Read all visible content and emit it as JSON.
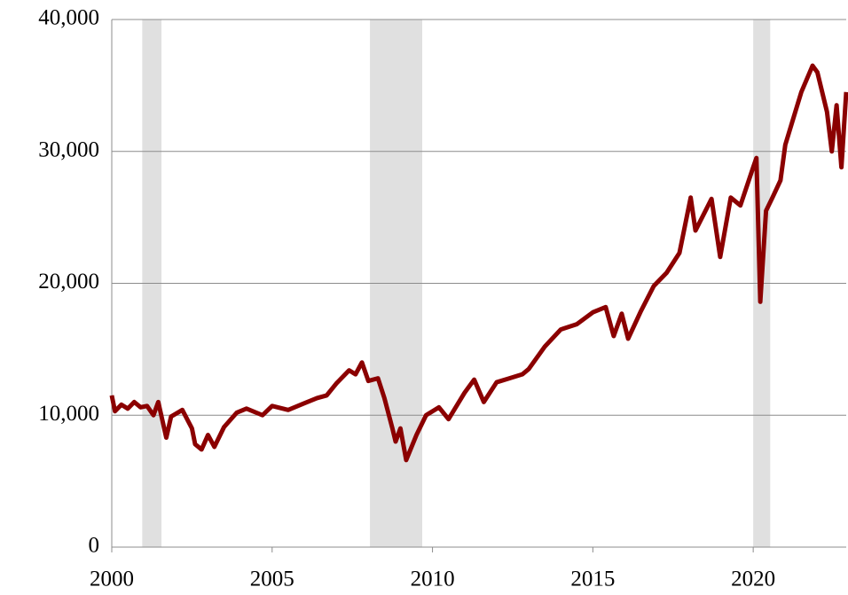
{
  "chart_data": {
    "type": "line",
    "x": [
      2000.0,
      2000.1,
      2000.3,
      2000.5,
      2000.7,
      2000.9,
      2001.1,
      2001.3,
      2001.45,
      2001.7,
      2001.85,
      2002.2,
      2002.5,
      2002.6,
      2002.8,
      2003.0,
      2003.2,
      2003.5,
      2003.9,
      2004.2,
      2004.7,
      2005.0,
      2005.5,
      2006.0,
      2006.4,
      2006.7,
      2007.0,
      2007.4,
      2007.6,
      2007.8,
      2008.0,
      2008.3,
      2008.5,
      2008.75,
      2008.85,
      2009.0,
      2009.18,
      2009.5,
      2009.8,
      2010.2,
      2010.5,
      2011.0,
      2011.3,
      2011.6,
      2012.0,
      2012.4,
      2012.8,
      2013.0,
      2013.5,
      2014.0,
      2014.5,
      2015.0,
      2015.4,
      2015.65,
      2015.9,
      2016.1,
      2016.5,
      2016.9,
      2017.3,
      2017.7,
      2018.05,
      2018.2,
      2018.7,
      2018.97,
      2019.3,
      2019.6,
      2020.0,
      2020.1,
      2020.22,
      2020.4,
      2020.6,
      2020.85,
      2021.0,
      2021.5,
      2021.85,
      2022.0,
      2022.3,
      2022.45,
      2022.6,
      2022.75,
      2022.9
    ],
    "series": [
      {
        "color": "#8b0000",
        "values": [
          11500,
          10300,
          10800,
          10500,
          11000,
          10600,
          10700,
          10000,
          11000,
          8300,
          9900,
          10400,
          9000,
          7800,
          7400,
          8500,
          7600,
          9100,
          10200,
          10500,
          10000,
          10700,
          10400,
          10900,
          11300,
          11500,
          12400,
          13400,
          13100,
          14000,
          12600,
          12800,
          11300,
          9000,
          8000,
          9000,
          6600,
          8500,
          10000,
          10600,
          9700,
          11700,
          12700,
          11000,
          12500,
          12800,
          13100,
          13500,
          15200,
          16500,
          16900,
          17800,
          18200,
          16000,
          17700,
          15800,
          17900,
          19800,
          20800,
          22300,
          26500,
          24000,
          26400,
          22000,
          26500,
          25900,
          28800,
          29500,
          18600,
          25500,
          26500,
          27800,
          30500,
          34500,
          36500,
          36000,
          33000,
          30000,
          33500,
          28800,
          34500
        ]
      }
    ],
    "shaded_periods": [
      {
        "start": 2000.95,
        "end": 2001.55
      },
      {
        "start": 2008.05,
        "end": 2009.68
      },
      {
        "start": 2020.0,
        "end": 2020.53
      }
    ],
    "shade_color": "#e0e0e0",
    "xlim": [
      2000,
      2022.9
    ],
    "xticks": [
      2000,
      2005,
      2010,
      2015,
      2020
    ],
    "ylim": [
      0,
      40000
    ],
    "yticks": [
      0,
      {
        "value": 10000,
        "label": "10,000"
      },
      {
        "value": 20000,
        "label": "20,000"
      },
      {
        "value": 30000,
        "label": "30,000"
      },
      {
        "value": 40000,
        "label": "40,000"
      }
    ],
    "grid": true
  }
}
